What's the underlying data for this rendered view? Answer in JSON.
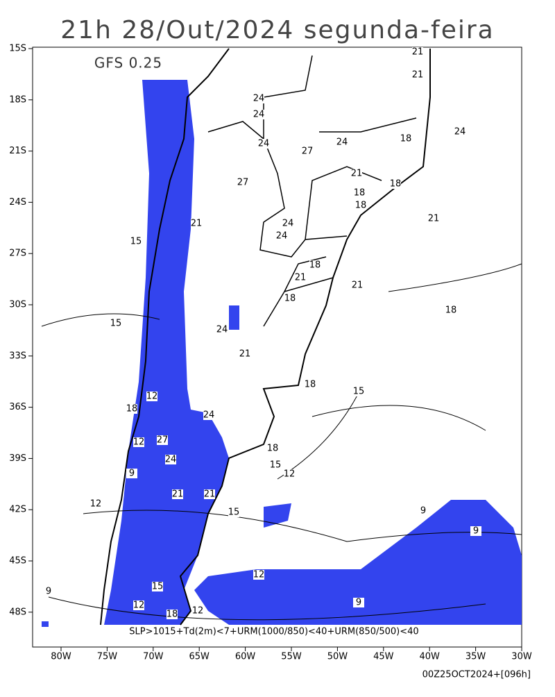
{
  "header": {
    "title": "21h 28/Out/2024 segunda-feira",
    "model": "GFS 0.25"
  },
  "map": {
    "lon_ticks": [
      {
        "value": -80,
        "label": "80W"
      },
      {
        "value": -75,
        "label": "75W"
      },
      {
        "value": -70,
        "label": "70W"
      },
      {
        "value": -65,
        "label": "65W"
      },
      {
        "value": -60,
        "label": "60W"
      },
      {
        "value": -55,
        "label": "55W"
      },
      {
        "value": -50,
        "label": "50W"
      },
      {
        "value": -45,
        "label": "45W"
      },
      {
        "value": -40,
        "label": "40W"
      },
      {
        "value": -35,
        "label": "35W"
      },
      {
        "value": -30,
        "label": "30W"
      }
    ],
    "lat_ticks": [
      {
        "value": -15,
        "label": "15S"
      },
      {
        "value": -18,
        "label": "18S"
      },
      {
        "value": -21,
        "label": "21S"
      },
      {
        "value": -24,
        "label": "24S"
      },
      {
        "value": -27,
        "label": "27S"
      },
      {
        "value": -30,
        "label": "30S"
      },
      {
        "value": -33,
        "label": "33S"
      },
      {
        "value": -36,
        "label": "36S"
      },
      {
        "value": -39,
        "label": "39S"
      },
      {
        "value": -42,
        "label": "42S"
      },
      {
        "value": -45,
        "label": "45S"
      },
      {
        "value": -48,
        "label": "48S"
      }
    ],
    "contour_labels": [
      "21",
      "21",
      "24",
      "24",
      "24",
      "18",
      "18",
      "24",
      "27",
      "24",
      "21",
      "18",
      "18",
      "21",
      "27",
      "24",
      "24",
      "21",
      "18",
      "21",
      "21",
      "18",
      "18",
      "15",
      "24",
      "21",
      "18",
      "15",
      "18",
      "15",
      "12",
      "12",
      "15",
      "9",
      "9",
      "12",
      "9",
      "9",
      "18",
      "12",
      "12",
      "9",
      "15",
      "18",
      "12",
      "27",
      "24",
      "21",
      "24",
      "21",
      "15",
      "12"
    ],
    "caption": "SLP>1015+Td(2m)<7+URM(1000/850)<40+URM(850/500)<40",
    "footer": "00Z25OCT2024+[096h]"
  }
}
